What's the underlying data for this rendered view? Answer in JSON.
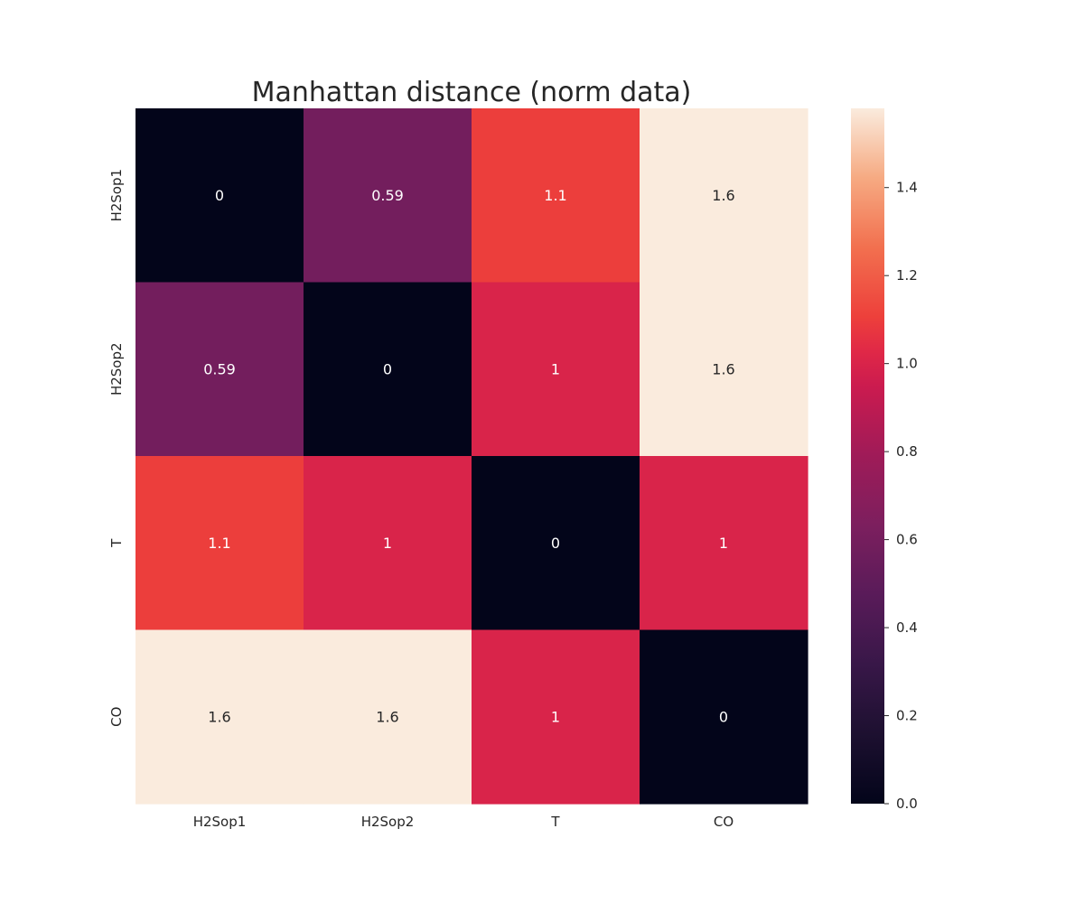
{
  "chart_data": {
    "type": "heatmap",
    "title": "Manhattan distance (norm data)",
    "xlabel": "",
    "ylabel": "",
    "x_categories": [
      "H2Sop1",
      "H2Sop2",
      "T",
      "CO"
    ],
    "y_categories": [
      "H2Sop1",
      "H2Sop2",
      "T",
      "CO"
    ],
    "values": [
      [
        0,
        0.59,
        1.1,
        1.6
      ],
      [
        0.59,
        0,
        1.0,
        1.6
      ],
      [
        1.1,
        1.0,
        0,
        1.0
      ],
      [
        1.6,
        1.6,
        1.0,
        0
      ]
    ],
    "annotations": [
      [
        "0",
        "0.59",
        "1.1",
        "1.6"
      ],
      [
        "0.59",
        "0",
        "1",
        "1.6"
      ],
      [
        "1.1",
        "1",
        "0",
        "1"
      ],
      [
        "1.6",
        "1.6",
        "1",
        "0"
      ]
    ],
    "colormap": "rocket",
    "vmin": 0,
    "vmax": 1.58,
    "colorbar": {
      "ticks": [
        0.0,
        0.2,
        0.4,
        0.6,
        0.8,
        1.0,
        1.2,
        1.4
      ],
      "tick_labels": [
        "0.0",
        "0.2",
        "0.4",
        "0.6",
        "0.8",
        "1.0",
        "1.2",
        "1.4"
      ],
      "position": "right"
    },
    "grid": false,
    "legend": false
  }
}
